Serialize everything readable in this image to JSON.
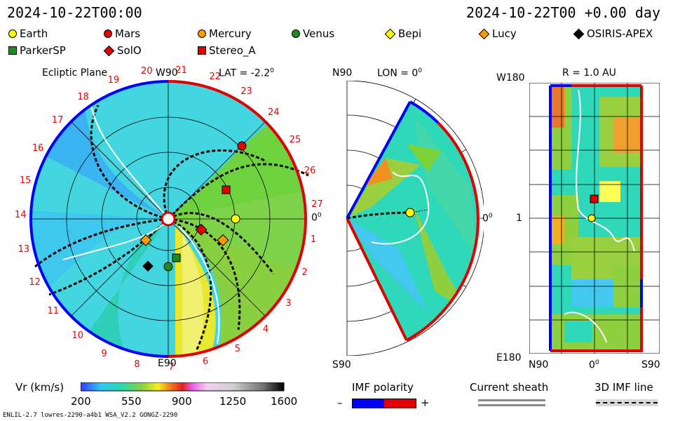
{
  "header": {
    "left_time": "2024-10-22T00:00",
    "right_time": "2024-10-22T00 +0.00 day"
  },
  "legend": [
    {
      "name": "Earth",
      "shape": "circle",
      "color": "#ffff00"
    },
    {
      "name": "Mars",
      "shape": "circle",
      "color": "#e00000"
    },
    {
      "name": "Mercury",
      "shape": "circle",
      "color": "#ff9900"
    },
    {
      "name": "Venus",
      "shape": "circle",
      "color": "#228822"
    },
    {
      "name": "Bepi",
      "shape": "diamond",
      "color": "#ffff00"
    },
    {
      "name": "Lucy",
      "shape": "diamond",
      "color": "#ff9900"
    },
    {
      "name": "OSIRIS-APEX",
      "shape": "diamond",
      "color": "#000000"
    },
    {
      "name": "ParkerSP",
      "shape": "square",
      "color": "#228822"
    },
    {
      "name": "SolO",
      "shape": "diamond",
      "color": "#e00000"
    },
    {
      "name": "Stereo_A",
      "shape": "square",
      "color": "#e00000"
    }
  ],
  "panel1": {
    "label": "Ecliptic Plane",
    "lat": "LAT = -2.2",
    "deg": "0",
    "top_label": "W90",
    "bottom_label": "E90",
    "right_label": "0",
    "right_deg": "0",
    "sector_numbers": [
      "1",
      "2",
      "3",
      "4",
      "5",
      "6",
      "7",
      "8",
      "9",
      "10",
      "11",
      "12",
      "13",
      "14",
      "15",
      "16",
      "17",
      "18",
      "19",
      "20",
      "21",
      "22",
      "23",
      "24",
      "25",
      "26",
      "27"
    ]
  },
  "panel2": {
    "top_label": "N90",
    "bottom_label": "S90",
    "lon": "LON = 0",
    "deg": "0",
    "right_label": "0",
    "right_deg": "0"
  },
  "panel3": {
    "r_label": "R = 1.0 AU",
    "top_left": "W180",
    "mid_left": "1",
    "bottom_left": "E180",
    "bottom_axis": [
      "N90",
      "0",
      "S90"
    ],
    "bottom_deg": "0"
  },
  "colorbar": {
    "label": "Vr (km/s)",
    "ticks": [
      "200",
      "550",
      "900",
      "1250",
      "1600"
    ]
  },
  "imf": {
    "label": "IMF polarity",
    "minus": "–",
    "plus": "+"
  },
  "sheath": {
    "label": "Current sheath"
  },
  "imf3d": {
    "label": "3D IMF line"
  },
  "footer": {
    "model": "ENLIL-2.7 lowres-2290-a4b1 WSA_V2.2 GONGZ-2290"
  },
  "colors": {
    "accent_red": "#e00000",
    "accent_blue": "#0000ff"
  }
}
